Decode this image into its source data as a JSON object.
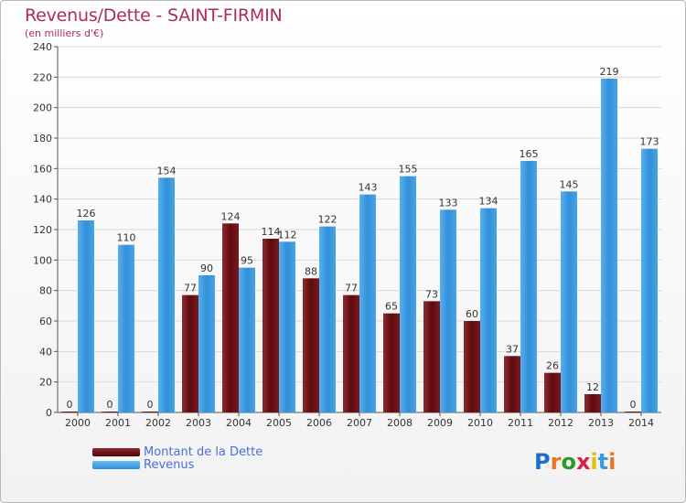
{
  "chart_data": {
    "type": "bar",
    "title": "Revenus/Dette - SAINT-FIRMIN",
    "subtitle": "(en milliers d'€)",
    "categories": [
      "2000",
      "2001",
      "2002",
      "2003",
      "2004",
      "2005",
      "2006",
      "2007",
      "2008",
      "2009",
      "2010",
      "2011",
      "2012",
      "2013",
      "2014"
    ],
    "series": [
      {
        "name": "Montant de la Dette",
        "values": [
          0,
          0,
          0,
          77,
          124,
          114,
          88,
          77,
          65,
          73,
          60,
          37,
          26,
          12,
          0
        ],
        "color": "#6b0f12"
      },
      {
        "name": "Revenus",
        "values": [
          126,
          110,
          154,
          90,
          95,
          112,
          122,
          143,
          155,
          133,
          134,
          165,
          145,
          219,
          173
        ],
        "color": "#3a9ae0"
      }
    ],
    "ylim": [
      0,
      240
    ],
    "yticks": [
      0,
      20,
      40,
      60,
      80,
      100,
      120,
      140,
      160,
      180,
      200,
      220,
      240
    ],
    "grid": true,
    "legend_position": "bottom-left"
  },
  "logo": {
    "text": "Proxiti",
    "letter_colors": [
      "#1a6fc9",
      "#e8741e",
      "#2e9a2e",
      "#d9224a",
      "#f2b700",
      "#3a9ae0",
      "#e8741e"
    ]
  },
  "colors": {
    "title": "#b02a5b",
    "axis_text": "#333333",
    "grid": "#d8d8d8"
  }
}
